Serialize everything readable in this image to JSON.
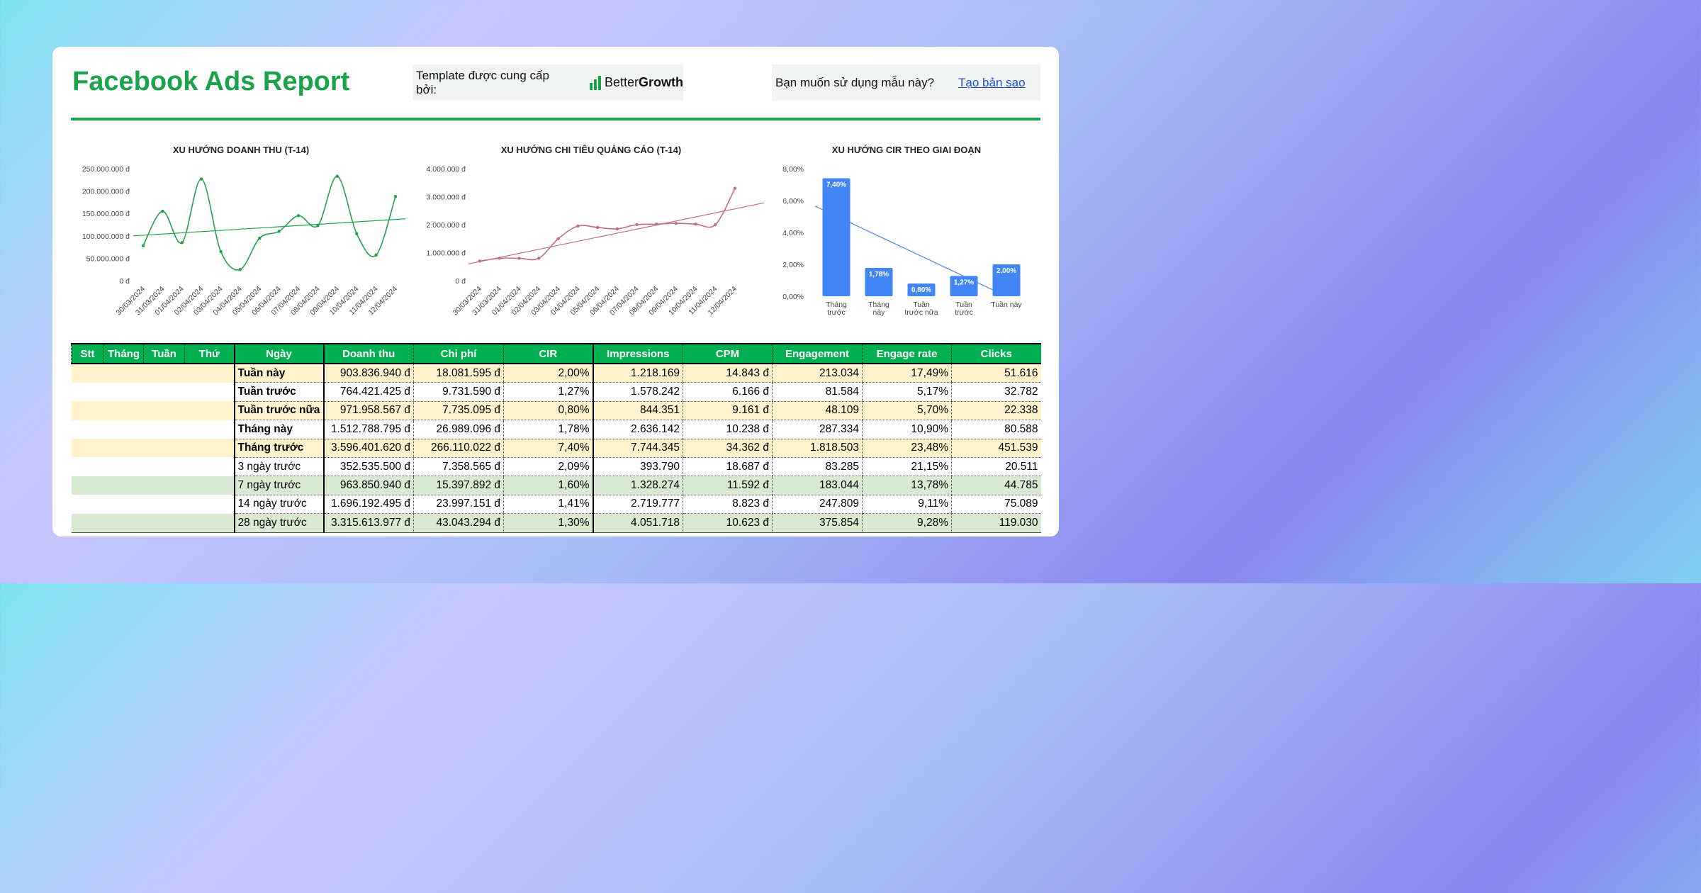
{
  "header": {
    "title": "Facebook Ads Report",
    "template_label": "Template được cung cấp bởi:",
    "brand_regular": "Better",
    "brand_bold": "Growth",
    "copy_question": "Bạn muốn sử dụng mẫu này?",
    "copy_link": "Tạo bản sao"
  },
  "colors": {
    "brand_green": "#1aa34a",
    "table_header_green": "#00b050",
    "revenue_line": "#1fa34a",
    "spend_line": "#c06c8f",
    "cir_bar": "#4285f4",
    "row_yellow": "#fff2cc",
    "row_green": "#d9ead3",
    "link_blue": "#1a4fd6"
  },
  "chart_data": [
    {
      "id": "revenue",
      "type": "line",
      "title": "XU HƯỚNG DOANH THU (T-14)",
      "x": [
        "30/03/2024",
        "31/03/2024",
        "01/04/2024",
        "02/04/2024",
        "03/04/2024",
        "04/04/2024",
        "05/04/2024",
        "06/04/2024",
        "07/04/2024",
        "08/04/2024",
        "09/04/2024",
        "10/04/2024",
        "11/04/2024",
        "12/04/2024"
      ],
      "values": [
        78000000,
        155000000,
        85000000,
        227000000,
        65000000,
        25000000,
        95000000,
        110000000,
        145000000,
        123000000,
        233000000,
        105000000,
        57000000,
        188000000
      ],
      "trendline": true,
      "trend": [
        100000000,
        138000000
      ],
      "ylim": [
        0,
        250000000
      ],
      "yticks": [
        "0 đ",
        "50.000.000 đ",
        "100.000.000 đ",
        "150.000.000 đ",
        "200.000.000 đ",
        "250.000.000 đ"
      ],
      "xlabel": "",
      "ylabel": "",
      "grid": false
    },
    {
      "id": "spend",
      "type": "line",
      "title": "XU HƯỚNG CHI TIÊU QUẢNG CÁO (T-14)",
      "x": [
        "30/03/2024",
        "31/03/2024",
        "01/04/2024",
        "02/04/2024",
        "03/04/2024",
        "04/04/2024",
        "05/04/2024",
        "06/04/2024",
        "07/04/2024",
        "08/04/2024",
        "09/04/2024",
        "10/04/2024",
        "11/04/2024",
        "12/04/2024"
      ],
      "values": [
        700000,
        800000,
        800000,
        800000,
        1500000,
        1950000,
        1900000,
        1850000,
        2000000,
        2020000,
        2050000,
        2020000,
        2000000,
        3300000
      ],
      "trendline": true,
      "trend": [
        600000,
        2780000
      ],
      "ylim": [
        0,
        4000000
      ],
      "yticks": [
        "0 đ",
        "1.000.000 đ",
        "2.000.000 đ",
        "3.000.000 đ",
        "4.000.000 đ"
      ],
      "xlabel": "",
      "ylabel": "",
      "grid": false
    },
    {
      "id": "cir",
      "type": "bar",
      "title": "XU HƯỚNG CIR THEO GIAI ĐOẠN",
      "categories": [
        [
          "Tháng",
          "trước"
        ],
        [
          "Tháng",
          "này"
        ],
        [
          "Tuần",
          "trước nữa"
        ],
        [
          "Tuần",
          "trước"
        ],
        [
          "Tuần này"
        ]
      ],
      "values": [
        7.4,
        1.78,
        0.8,
        1.27,
        2.0
      ],
      "labels": [
        "7,40%",
        "1,78%",
        "0,80%",
        "1,27%",
        "2,00%"
      ],
      "trendline": true,
      "trend": [
        5.65,
        0.0
      ],
      "ylim": [
        0,
        8
      ],
      "yticks": [
        "0,00%",
        "2,00%",
        "4,00%",
        "6,00%",
        "8,00%"
      ],
      "xlabel": "",
      "ylabel": "",
      "grid": false
    }
  ],
  "table": {
    "columns": [
      "Stt",
      "Tháng",
      "Tuần",
      "Thứ",
      "Ngày",
      "Doanh thu",
      "Chi phí",
      "CIR",
      "Impressions",
      "CPM",
      "Engagement",
      "Engage rate",
      "Clicks"
    ],
    "rows": [
      {
        "label": "Tuần này",
        "values": [
          "903.836.940 đ",
          "18.081.595 đ",
          "2,00%",
          "1.218.169",
          "14.843 đ",
          "213.034",
          "17,49%",
          "51.616"
        ],
        "bold": true,
        "bg": "y"
      },
      {
        "label": "Tuần trước",
        "values": [
          "764.421.425 đ",
          "9.731.590 đ",
          "1,27%",
          "1.578.242",
          "6.166 đ",
          "81.584",
          "5,17%",
          "32.782"
        ],
        "bold": true,
        "bg": "w"
      },
      {
        "label": "Tuần trước nữa",
        "values": [
          "971.958.567 đ",
          "7.735.095 đ",
          "0,80%",
          "844.351",
          "9.161 đ",
          "48.109",
          "5,70%",
          "22.338"
        ],
        "bold": true,
        "bg": "y"
      },
      {
        "label": "Tháng này",
        "values": [
          "1.512.788.795 đ",
          "26.989.096 đ",
          "1,78%",
          "2.636.142",
          "10.238 đ",
          "287.334",
          "10,90%",
          "80.588"
        ],
        "bold": true,
        "bg": "w"
      },
      {
        "label": "Tháng trước",
        "values": [
          "3.596.401.620 đ",
          "266.110.022 đ",
          "7,40%",
          "7.744.345",
          "34.362 đ",
          "1.818.503",
          "23,48%",
          "451.539"
        ],
        "bold": true,
        "bg": "y"
      },
      {
        "label": "3 ngày trước",
        "values": [
          "352.535.500 đ",
          "7.358.565 đ",
          "2,09%",
          "393.790",
          "18.687 đ",
          "83.285",
          "21,15%",
          "20.511"
        ],
        "bold": false,
        "bg": "w"
      },
      {
        "label": "7 ngày trước",
        "values": [
          "963.850.940 đ",
          "15.397.892 đ",
          "1,60%",
          "1.328.274",
          "11.592 đ",
          "183.044",
          "13,78%",
          "44.785"
        ],
        "bold": false,
        "bg": "g"
      },
      {
        "label": "14 ngày trước",
        "values": [
          "1.696.192.495 đ",
          "23.997.151 đ",
          "1,41%",
          "2.719.777",
          "8.823 đ",
          "247.809",
          "9,11%",
          "75.089"
        ],
        "bold": false,
        "bg": "w"
      },
      {
        "label": "28 ngày trước",
        "values": [
          "3.315.613.977 đ",
          "43.043.294 đ",
          "1,30%",
          "4.051.718",
          "10.623 đ",
          "375.854",
          "9,28%",
          "119.030"
        ],
        "bold": false,
        "bg": "g"
      }
    ]
  }
}
